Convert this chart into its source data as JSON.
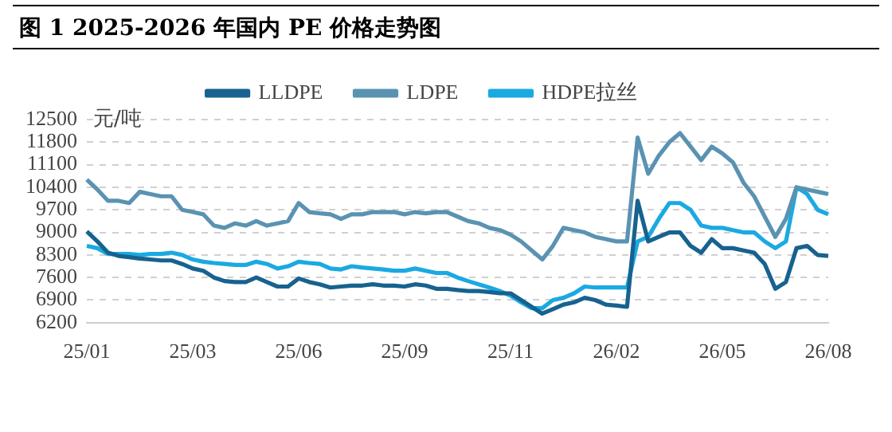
{
  "chart_data": {
    "type": "line",
    "title": "图 1 2025-2026 年国内 PE 价格走势图",
    "ylabel": "元/吨",
    "categories": [
      "25/01",
      null,
      null,
      null,
      null,
      null,
      null,
      null,
      null,
      null,
      "25/03",
      null,
      null,
      null,
      null,
      null,
      null,
      null,
      null,
      null,
      "25/06",
      null,
      null,
      null,
      null,
      null,
      null,
      null,
      null,
      null,
      "25/09",
      null,
      null,
      null,
      null,
      null,
      null,
      null,
      null,
      null,
      "25/11",
      null,
      null,
      null,
      null,
      null,
      null,
      null,
      null,
      null,
      "26/02",
      null,
      null,
      null,
      null,
      null,
      null,
      null,
      null,
      null,
      "26/05",
      null,
      null,
      null,
      null,
      null,
      null,
      null,
      null,
      null,
      "26/08"
    ],
    "series": [
      {
        "name": "LLDPE",
        "color": "#17628f",
        "values": [
          9028,
          8720,
          8370,
          8270,
          8230,
          8190,
          8160,
          8130,
          8130,
          8020,
          7880,
          7810,
          7600,
          7490,
          7460,
          7460,
          7600,
          7460,
          7320,
          7320,
          7570,
          7460,
          7390,
          7290,
          7320,
          7350,
          7350,
          7390,
          7350,
          7350,
          7320,
          7390,
          7350,
          7250,
          7250,
          7210,
          7180,
          7180,
          7150,
          7110,
          7110,
          6900,
          6690,
          6480,
          6620,
          6760,
          6830,
          6970,
          6900,
          6760,
          6730,
          6690,
          9980,
          8720,
          8860,
          9000,
          9000,
          8580,
          8370,
          8790,
          8510,
          8510,
          8440,
          8370,
          8020,
          7250,
          7460,
          8510,
          8580,
          8300,
          8270
        ]
      },
      {
        "name": "LDPE",
        "color": "#5a93b2",
        "values": [
          10638,
          10330,
          9980,
          9980,
          9910,
          10260,
          10190,
          10120,
          10120,
          9700,
          9630,
          9560,
          9210,
          9140,
          9280,
          9210,
          9350,
          9210,
          9280,
          9350,
          9910,
          9630,
          9590,
          9560,
          9420,
          9560,
          9560,
          9630,
          9630,
          9630,
          9560,
          9630,
          9590,
          9630,
          9630,
          9490,
          9350,
          9280,
          9140,
          9070,
          8930,
          8720,
          8440,
          8160,
          8580,
          9140,
          9070,
          9000,
          8860,
          8790,
          8720,
          8720,
          11940,
          10820,
          11380,
          11800,
          12080,
          11660,
          11240,
          11660,
          11450,
          11170,
          10540,
          10120,
          9490,
          8860,
          9420,
          10400,
          10330,
          10260,
          10190
        ]
      },
      {
        "name": "HDPE拉丝",
        "color": "#1ba9e2",
        "values": [
          8580,
          8510,
          8330,
          8330,
          8330,
          8300,
          8330,
          8330,
          8370,
          8300,
          8160,
          8090,
          8050,
          8020,
          7990,
          7990,
          8090,
          8020,
          7880,
          7950,
          8090,
          8050,
          8020,
          7880,
          7850,
          7950,
          7910,
          7880,
          7850,
          7810,
          7810,
          7880,
          7810,
          7740,
          7740,
          7600,
          7490,
          7390,
          7290,
          7180,
          7040,
          6830,
          6650,
          6650,
          6900,
          6970,
          7110,
          7320,
          7290,
          7290,
          7290,
          7290,
          8720,
          8860,
          9420,
          9910,
          9910,
          9700,
          9210,
          9140,
          9140,
          9070,
          9000,
          9000,
          8720,
          8510,
          8720,
          10400,
          10190,
          9700,
          9560
        ]
      }
    ],
    "ylim": [
      6200,
      12500
    ],
    "yticks": [
      6200,
      6900,
      7600,
      8300,
      9000,
      9700,
      10400,
      11100,
      11800,
      12500
    ],
    "grid": "y",
    "legend": "top",
    "marker": "none",
    "line_style": "solid"
  }
}
